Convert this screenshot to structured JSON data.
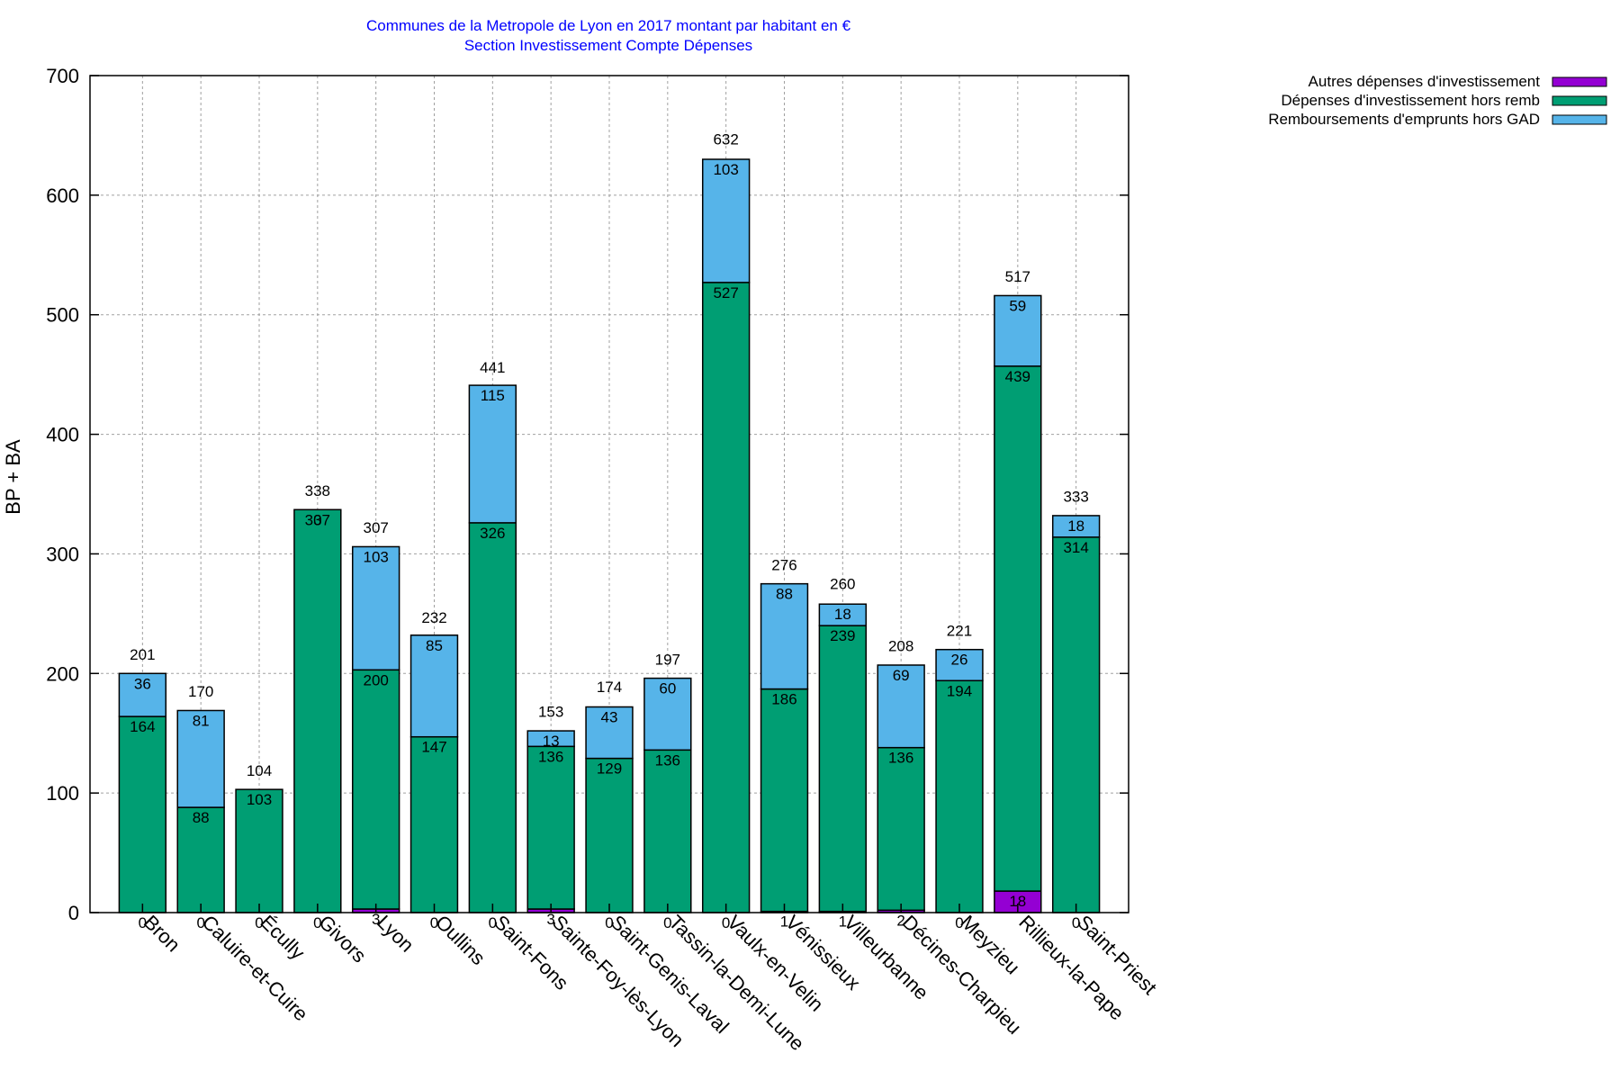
{
  "chart_data": {
    "type": "bar",
    "stacked": true,
    "title": "Communes de la Metropole de Lyon en 2017 montant par habitant en €",
    "subtitle": "Section Investissement Compte Dépenses",
    "xlabel": "",
    "ylabel": "BP + BA",
    "ylim": [
      0,
      700
    ],
    "yticks": [
      0,
      100,
      200,
      300,
      400,
      500,
      600,
      700
    ],
    "grid": true,
    "legend_position": "top-right-outside",
    "categories": [
      "Bron",
      "Caluire-et-Cuire",
      "Écully",
      "Givors",
      "Lyon",
      "Oullins",
      "Saint-Fons",
      "Sainte-Foy-lès-Lyon",
      "Saint-Genis-Laval",
      "Tassin-la-Demi-Lune",
      "Vaulx-en-Velin",
      "Vénissieux",
      "Villeurbanne",
      "Décines-Charpieu",
      "Meyzieu",
      "Rillieux-la-Pape",
      "Saint-Priest"
    ],
    "series": [
      {
        "name": "Autres dépenses d'investissement",
        "color": "#9400d3",
        "values": [
          0,
          0,
          0,
          0,
          3,
          0,
          0,
          3,
          0,
          0,
          0,
          1,
          1,
          2,
          0,
          18,
          0
        ]
      },
      {
        "name": "Dépenses d'investissement hors remb",
        "color": "#009e73",
        "values": [
          164,
          88,
          103,
          337,
          200,
          147,
          326,
          136,
          129,
          136,
          527,
          186,
          239,
          136,
          194,
          439,
          314
        ]
      },
      {
        "name": "Remboursements d'emprunts hors GAD",
        "color": "#56b4e9",
        "values": [
          36,
          81,
          0,
          0,
          103,
          85,
          115,
          13,
          43,
          60,
          103,
          88,
          18,
          69,
          26,
          59,
          18
        ]
      }
    ],
    "totals": [
      201,
      170,
      104,
      338,
      307,
      232,
      441,
      153,
      174,
      197,
      632,
      276,
      260,
      208,
      221,
      517,
      333
    ],
    "segment_labels": {
      "bottom": [
        "0",
        "0",
        "0",
        "0",
        "3",
        "0",
        "0",
        "3",
        "0",
        "0",
        "0",
        "1",
        "1",
        "2",
        "0",
        "18",
        "0"
      ],
      "middle": [
        "164",
        "88",
        "103",
        "337",
        "200",
        "147",
        "326",
        "136",
        "129",
        "136",
        "527",
        "186",
        "239",
        "136",
        "194",
        "439",
        "314"
      ],
      "top": [
        "36",
        "81",
        "",
        "0",
        "103",
        "85",
        "115",
        "13",
        "43",
        "60",
        "103",
        "88",
        "18",
        "69",
        "26",
        "59",
        "18"
      ]
    }
  }
}
